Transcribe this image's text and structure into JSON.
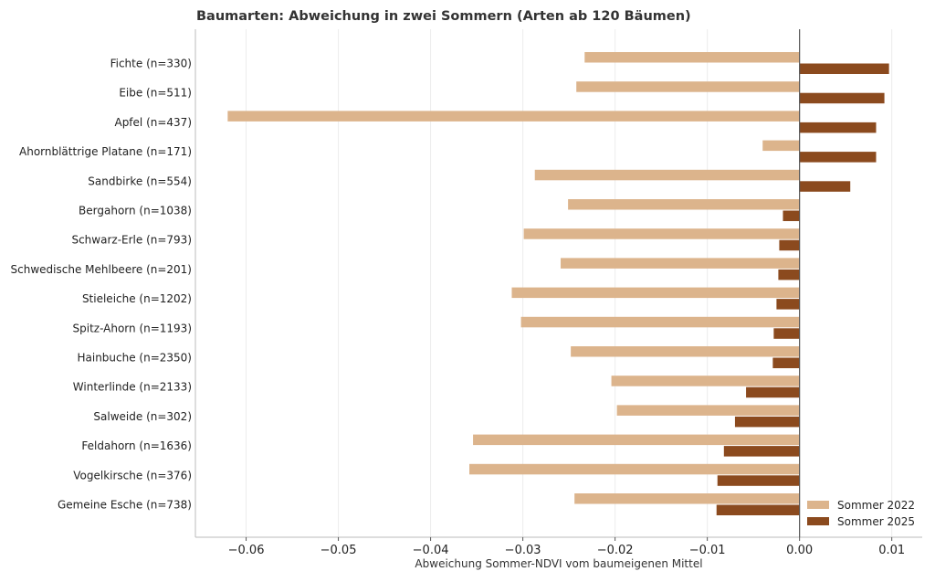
{
  "chart_data": {
    "type": "bar",
    "orientation": "horizontal",
    "title": "Baumarten: Abweichung in zwei Sommern (Arten ab 120 Bäumen)",
    "xlabel": "Abweichung Sommer-NDVI vom baumeigenen Mittel",
    "ylabel": "",
    "xlim": [
      -0.0655,
      0.0133
    ],
    "xticks": [
      -0.06,
      -0.05,
      -0.04,
      -0.03,
      -0.02,
      -0.01,
      0.0,
      0.01
    ],
    "xtick_labels": [
      "−0.06",
      "−0.05",
      "−0.04",
      "−0.03",
      "−0.02",
      "−0.01",
      "0.00",
      "0.01"
    ],
    "grid": "vertical",
    "legend_position": "bottom-right",
    "categories": [
      "Fichte  (n=330)",
      "Eibe  (n=511)",
      "Apfel  (n=437)",
      "Ahornblättrige Platane  (n=171)",
      "Sandbirke  (n=554)",
      "Bergahorn  (n=1038)",
      "Schwarz-Erle  (n=793)",
      "Schwedische Mehlbeere  (n=201)",
      "Stieleiche  (n=1202)",
      "Spitz-Ahorn  (n=1193)",
      "Hainbuche  (n=2350)",
      "Winterlinde  (n=2133)",
      "Salweide  (n=302)",
      "Feldahorn  (n=1636)",
      "Vogelkirsche  (n=376)",
      "Gemeine Esche  (n=738)"
    ],
    "series": [
      {
        "name": "Sommer 2022",
        "color": "#dcb48c",
        "values": [
          -0.0233,
          -0.0242,
          -0.062,
          -0.004,
          -0.0287,
          -0.0251,
          -0.0299,
          -0.0259,
          -0.0312,
          -0.0302,
          -0.0248,
          -0.0204,
          -0.0198,
          -0.0354,
          -0.0358,
          -0.0244
        ]
      },
      {
        "name": "Sommer 2025",
        "color": "#8b4a1e",
        "values": [
          0.0097,
          0.0092,
          0.0083,
          0.0083,
          0.0055,
          -0.0018,
          -0.0022,
          -0.0023,
          -0.0025,
          -0.0028,
          -0.0029,
          -0.0058,
          -0.007,
          -0.0082,
          -0.0089,
          -0.009
        ]
      }
    ]
  }
}
